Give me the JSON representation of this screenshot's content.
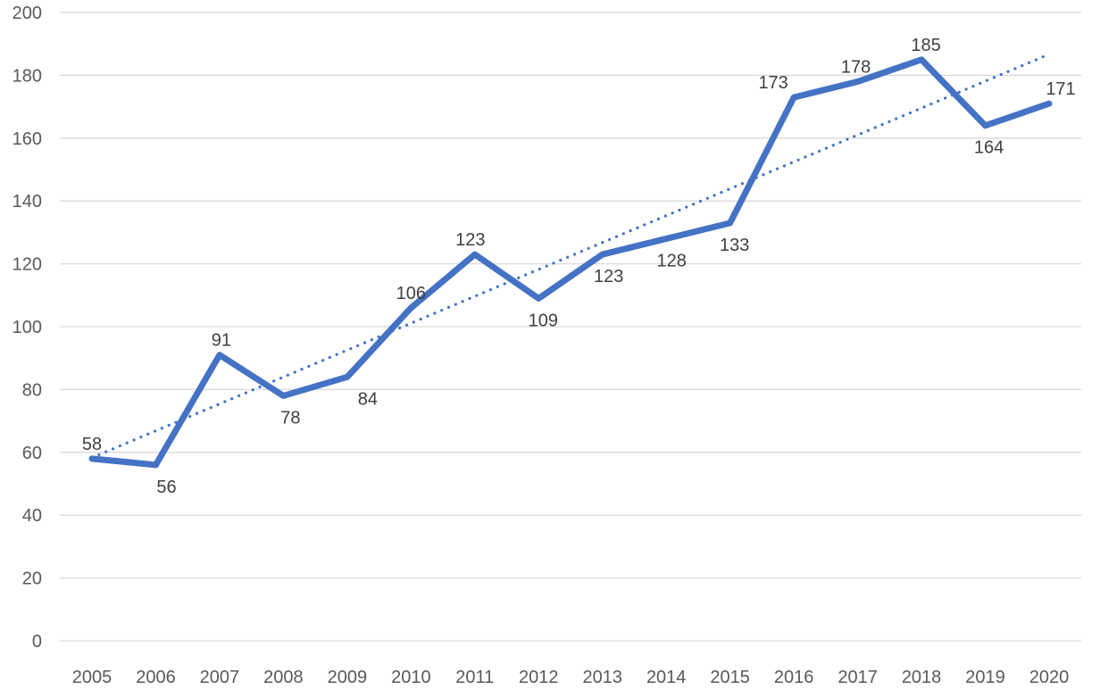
{
  "chart_data": {
    "type": "line",
    "title": "",
    "xlabel": "",
    "ylabel": "",
    "categories": [
      "2005",
      "2006",
      "2007",
      "2008",
      "2009",
      "2010",
      "2011",
      "2012",
      "2013",
      "2014",
      "2015",
      "2016",
      "2017",
      "2018",
      "2019",
      "2020"
    ],
    "series": [
      {
        "name": "annual-values",
        "values": [
          58,
          56,
          91,
          78,
          84,
          106,
          123,
          109,
          123,
          128,
          133,
          173,
          178,
          185,
          164,
          171
        ]
      }
    ],
    "data_labels": [
      {
        "value": 58,
        "position": "above",
        "dx": 0
      },
      {
        "value": 56,
        "position": "below",
        "dx": 12
      },
      {
        "value": 91,
        "position": "above",
        "dx": 2
      },
      {
        "value": 78,
        "position": "below",
        "dx": 8
      },
      {
        "value": 84,
        "position": "below",
        "dx": 23
      },
      {
        "value": 106,
        "position": "above",
        "dx": 0
      },
      {
        "value": 123,
        "position": "above",
        "dx": -5
      },
      {
        "value": 109,
        "position": "below",
        "dx": 5
      },
      {
        "value": 123,
        "position": "below",
        "dx": 7
      },
      {
        "value": 128,
        "position": "below",
        "dx": 6
      },
      {
        "value": 133,
        "position": "below",
        "dx": 5
      },
      {
        "value": 173,
        "position": "above",
        "dx": -23
      },
      {
        "value": 178,
        "position": "above",
        "dx": -2
      },
      {
        "value": 185,
        "position": "above",
        "dx": 5
      },
      {
        "value": 164,
        "position": "below",
        "dx": 4
      },
      {
        "value": 171,
        "position": "above",
        "dx": 13
      }
    ],
    "trendline": {
      "type": "linear",
      "style": "dotted",
      "start_value": 58.3,
      "end_value": 186.7
    },
    "ylim": [
      0,
      200
    ],
    "ytick_step": 20,
    "ytick_labels": [
      "0",
      "20",
      "40",
      "60",
      "80",
      "100",
      "120",
      "140",
      "160",
      "180",
      "200"
    ],
    "grid": true,
    "legend": false,
    "colors": {
      "series_line": "#4472C4",
      "trendline": "#4472C4",
      "gridline": "#D9D9D9",
      "axis_tick_label": "#595959",
      "data_label": "#404040",
      "background": "#FFFFFF"
    }
  }
}
